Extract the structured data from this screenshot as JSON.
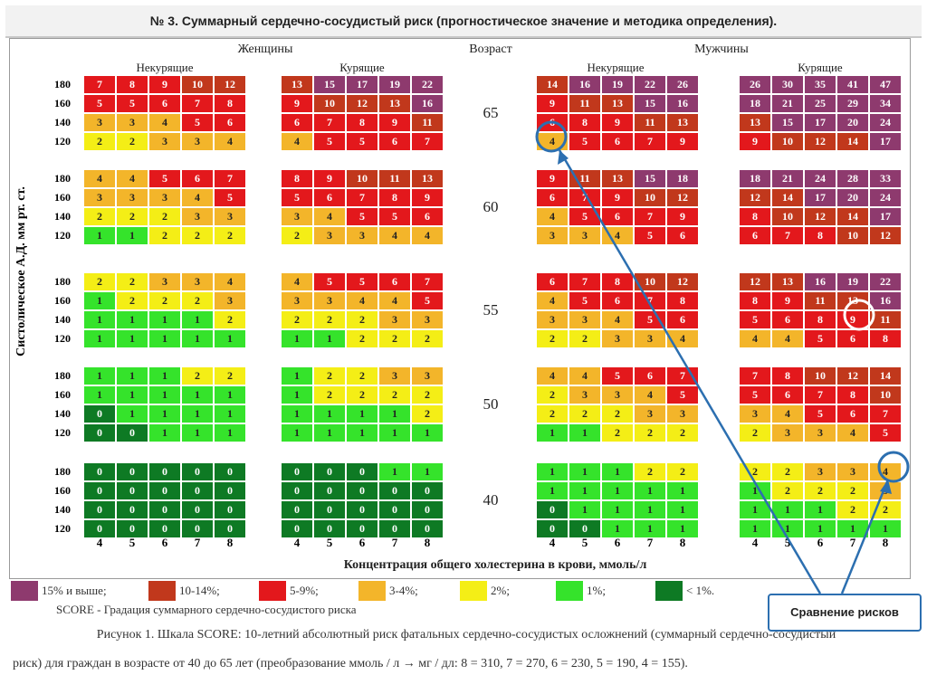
{
  "header": {
    "title": "№ 3. Суммарный сердечно-сосудистый риск (прогностическое значение и методика определения)."
  },
  "labels": {
    "women": "Женщины",
    "men": "Мужчины",
    "age_header": "Возраст",
    "nonsmoker": "Некурящие",
    "smoker": "Курящие",
    "y_axis": "Систолическое А.Д. мм рт. ст.",
    "x_axis": "Концентрация общего холестерина в крови, ммоль/л"
  },
  "chart_data": {
    "type": "heatmap",
    "ages": [
      65,
      60,
      55,
      50,
      40
    ],
    "systolic_bp": [
      180,
      160,
      140,
      120
    ],
    "cholesterol": [
      4,
      5,
      6,
      7,
      8
    ],
    "values": {
      "women_nonsmoker": [
        [
          [
            7,
            8,
            9,
            10,
            12
          ],
          [
            5,
            5,
            6,
            7,
            8
          ],
          [
            3,
            3,
            4,
            5,
            6
          ],
          [
            2,
            2,
            3,
            3,
            4
          ]
        ],
        [
          [
            4,
            4,
            5,
            6,
            7
          ],
          [
            3,
            3,
            3,
            4,
            5
          ],
          [
            2,
            2,
            2,
            3,
            3
          ],
          [
            1,
            1,
            2,
            2,
            2
          ]
        ],
        [
          [
            2,
            2,
            3,
            3,
            4
          ],
          [
            1,
            2,
            2,
            2,
            3
          ],
          [
            1,
            1,
            1,
            1,
            2
          ],
          [
            1,
            1,
            1,
            1,
            1
          ]
        ],
        [
          [
            1,
            1,
            1,
            2,
            2
          ],
          [
            1,
            1,
            1,
            1,
            1
          ],
          [
            0,
            1,
            1,
            1,
            1
          ],
          [
            0,
            0,
            1,
            1,
            1
          ]
        ],
        [
          [
            0,
            0,
            0,
            0,
            0
          ],
          [
            0,
            0,
            0,
            0,
            0
          ],
          [
            0,
            0,
            0,
            0,
            0
          ],
          [
            0,
            0,
            0,
            0,
            0
          ]
        ]
      ],
      "women_smoker": [
        [
          [
            13,
            15,
            17,
            19,
            22
          ],
          [
            9,
            10,
            12,
            13,
            16
          ],
          [
            6,
            7,
            8,
            9,
            11
          ],
          [
            4,
            5,
            5,
            6,
            7
          ]
        ],
        [
          [
            8,
            9,
            10,
            11,
            13
          ],
          [
            5,
            6,
            7,
            8,
            9
          ],
          [
            3,
            4,
            5,
            5,
            6
          ],
          [
            2,
            3,
            3,
            4,
            4
          ]
        ],
        [
          [
            4,
            5,
            5,
            6,
            7
          ],
          [
            3,
            3,
            4,
            4,
            5
          ],
          [
            2,
            2,
            2,
            3,
            3
          ],
          [
            1,
            1,
            2,
            2,
            2
          ]
        ],
        [
          [
            1,
            2,
            2,
            3,
            3
          ],
          [
            1,
            2,
            2,
            2,
            2
          ],
          [
            1,
            1,
            1,
            1,
            2
          ],
          [
            1,
            1,
            1,
            1,
            1
          ]
        ],
        [
          [
            0,
            0,
            0,
            1,
            1
          ],
          [
            0,
            0,
            0,
            0,
            0
          ],
          [
            0,
            0,
            0,
            0,
            0
          ],
          [
            0,
            0,
            0,
            0,
            0
          ]
        ]
      ],
      "men_nonsmoker": [
        [
          [
            14,
            16,
            19,
            22,
            26
          ],
          [
            9,
            11,
            13,
            15,
            16
          ],
          [
            6,
            8,
            9,
            11,
            13
          ],
          [
            4,
            5,
            6,
            7,
            9
          ]
        ],
        [
          [
            9,
            11,
            13,
            15,
            18
          ],
          [
            6,
            7,
            9,
            10,
            12
          ],
          [
            4,
            5,
            6,
            7,
            9
          ],
          [
            3,
            3,
            4,
            5,
            6
          ]
        ],
        [
          [
            6,
            7,
            8,
            10,
            12
          ],
          [
            4,
            5,
            6,
            7,
            8
          ],
          [
            3,
            3,
            4,
            5,
            6
          ],
          [
            2,
            2,
            3,
            3,
            4
          ]
        ],
        [
          [
            4,
            4,
            5,
            6,
            7
          ],
          [
            2,
            3,
            3,
            4,
            5
          ],
          [
            2,
            2,
            2,
            3,
            3
          ],
          [
            1,
            1,
            2,
            2,
            2
          ]
        ],
        [
          [
            1,
            1,
            1,
            2,
            2
          ],
          [
            1,
            1,
            1,
            1,
            1
          ],
          [
            0,
            1,
            1,
            1,
            1
          ],
          [
            0,
            0,
            1,
            1,
            1
          ]
        ]
      ],
      "men_smoker": [
        [
          [
            26,
            30,
            35,
            41,
            47
          ],
          [
            18,
            21,
            25,
            29,
            34
          ],
          [
            13,
            15,
            17,
            20,
            24
          ],
          [
            9,
            10,
            12,
            14,
            17
          ]
        ],
        [
          [
            18,
            21,
            24,
            28,
            33
          ],
          [
            12,
            14,
            17,
            20,
            24
          ],
          [
            8,
            10,
            12,
            14,
            17
          ],
          [
            6,
            7,
            8,
            10,
            12
          ]
        ],
        [
          [
            12,
            13,
            16,
            19,
            22
          ],
          [
            8,
            9,
            11,
            13,
            16
          ],
          [
            5,
            6,
            8,
            9,
            11
          ],
          [
            4,
            4,
            5,
            6,
            8
          ]
        ],
        [
          [
            7,
            8,
            10,
            12,
            14
          ],
          [
            5,
            6,
            7,
            8,
            10
          ],
          [
            3,
            4,
            5,
            6,
            7
          ],
          [
            2,
            3,
            3,
            4,
            5
          ]
        ],
        [
          [
            2,
            2,
            3,
            3,
            4
          ],
          [
            1,
            2,
            2,
            2,
            3
          ],
          [
            1,
            1,
            1,
            2,
            2
          ],
          [
            1,
            1,
            1,
            1,
            1
          ]
        ]
      ]
    },
    "color_scale": {
      "ge15": "#8e3a6e",
      "10-14": "#c1381c",
      "5-9": "#e3181c",
      "3-4": "#f3b52a",
      "2": "#f4ee16",
      "1": "#35e32b",
      "lt1": "#0e7a24"
    }
  },
  "legend": [
    {
      "label": "15% и выше;",
      "color": "#8e3a6e"
    },
    {
      "label": "10-14%;",
      "color": "#c1381c"
    },
    {
      "label": "5-9%;",
      "color": "#e3181c"
    },
    {
      "label": "3-4%;",
      "color": "#f3b52a"
    },
    {
      "label": "2%;",
      "color": "#f4ee16"
    },
    {
      "label": "1%;",
      "color": "#35e32b"
    },
    {
      "label": "< 1%.",
      "color": "#0e7a24"
    }
  ],
  "score_note": "SCORE - Градация суммарного сердечно-сосудистого риска",
  "caption_line1": "Рисунок 1. Шкала SCORE: 10-летний абсолютный риск фатальных сердечно-сосудистых осложнений (суммарный сердечно-сосудистый",
  "caption_line2": "риск) для граждан в возрасте от 40 до 65 лет (преобразование ммоль / л → мг / дл: 8 = 310, 7 = 270, 6 = 230, 5 = 190, 4 = 155).",
  "callout": {
    "label": "Сравнение рисков"
  }
}
